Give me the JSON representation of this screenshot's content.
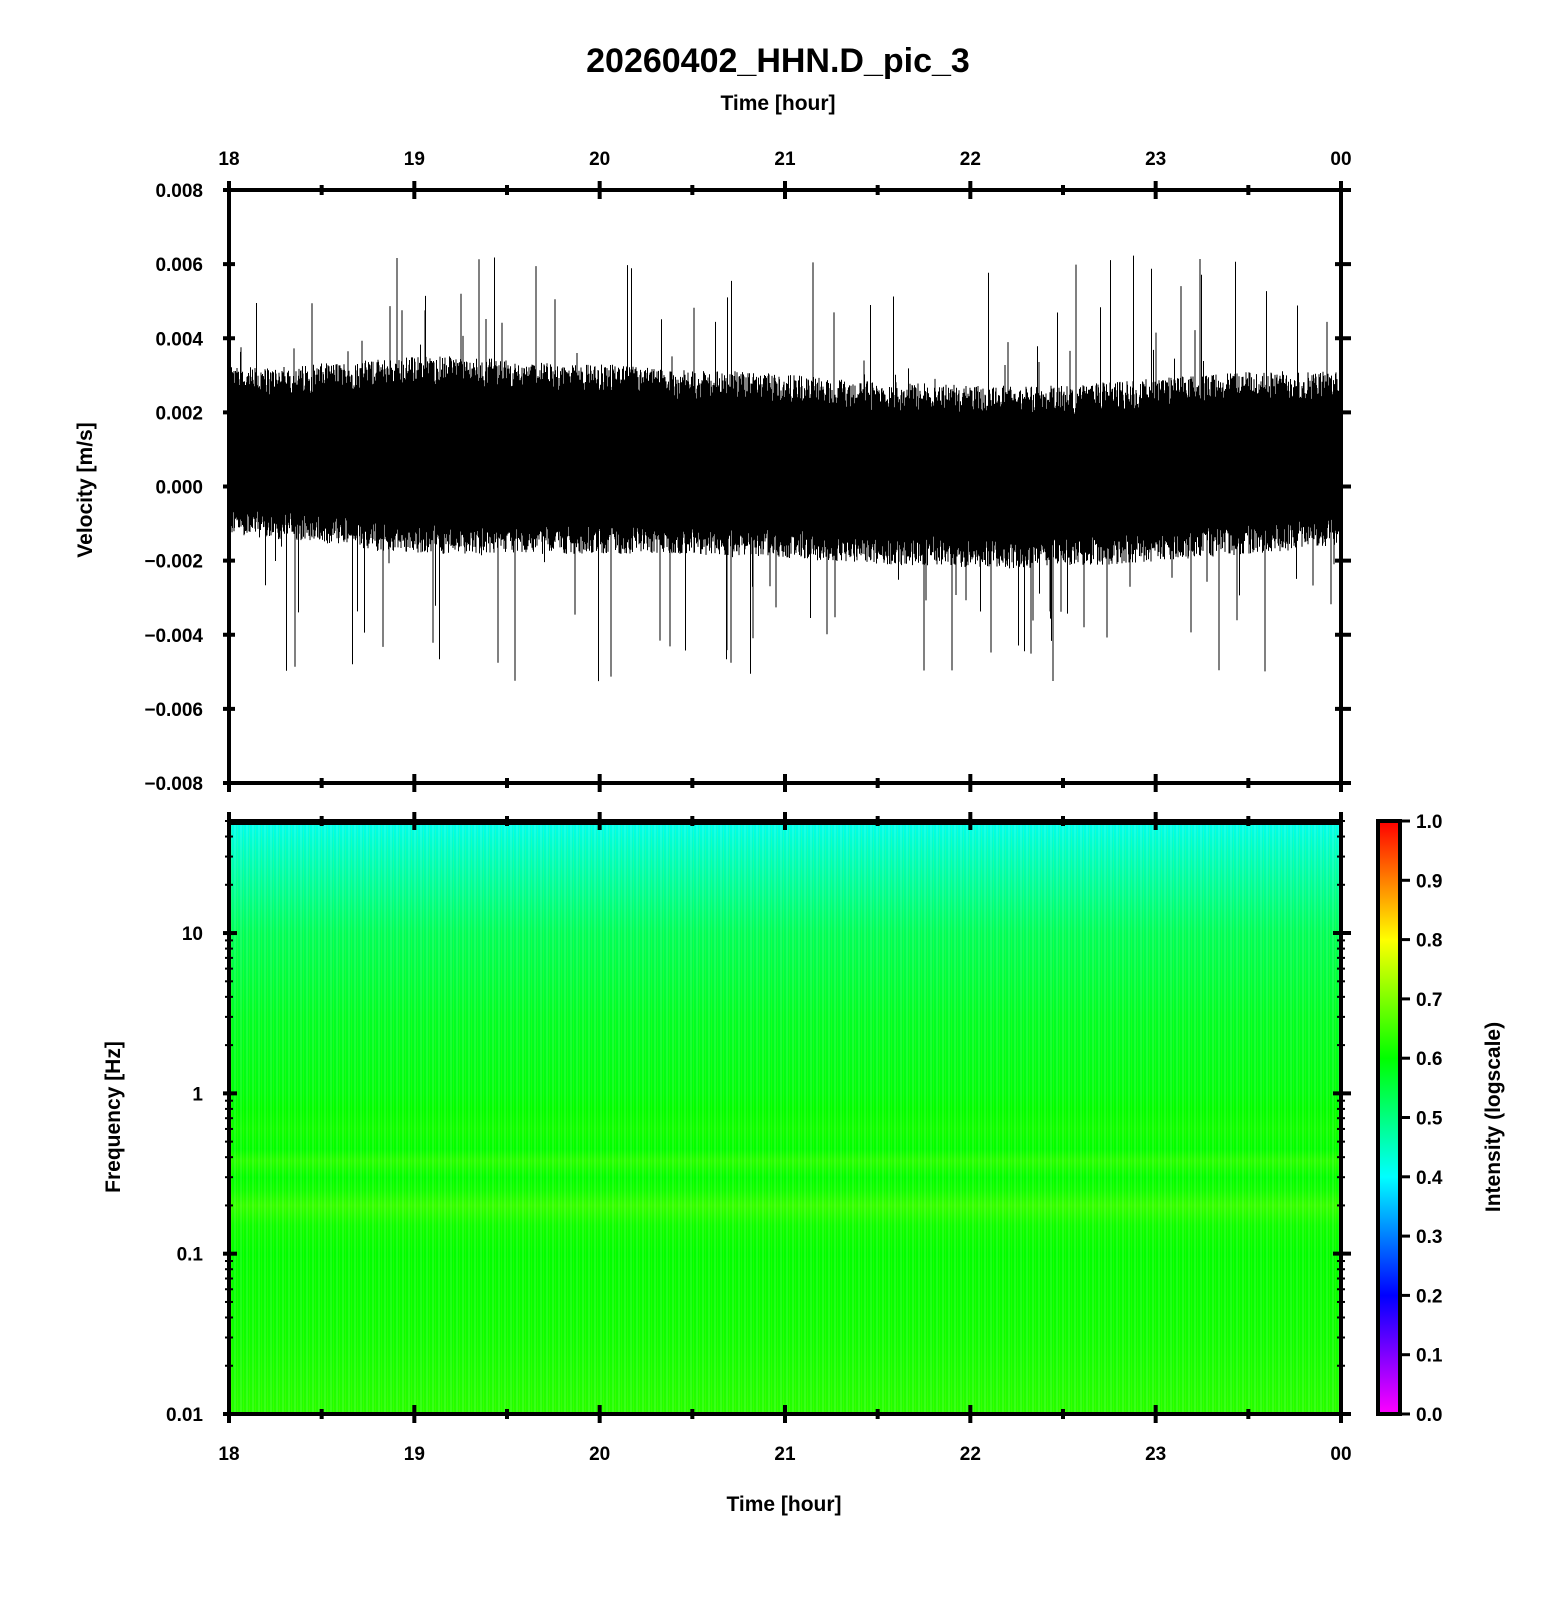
{
  "title": "20260402_HHN.D_pic_3",
  "chart_data": [
    {
      "type": "line",
      "panel": "waveform",
      "xlabel": "Time [hour]",
      "ylabel": "Velocity [m/s]",
      "x_ticks": [
        "18",
        "19",
        "20",
        "21",
        "22",
        "23",
        "00"
      ],
      "x_range_hours": [
        18,
        24
      ],
      "y_ticks": [
        "0.008",
        "0.006",
        "0.004",
        "0.002",
        "0.000",
        "−0.002",
        "−0.004",
        "−0.006",
        "−0.008"
      ],
      "ylim": [
        -0.008,
        0.008
      ],
      "line_color": "#000000",
      "envelope": {
        "hours": [
          18.0,
          18.25,
          18.5,
          18.75,
          19.0,
          19.25,
          19.5,
          19.75,
          20.0,
          20.25,
          20.5,
          20.75,
          21.0,
          21.25,
          21.5,
          21.75,
          22.0,
          22.25,
          22.5,
          22.75,
          23.0,
          23.25,
          23.5,
          23.75,
          24.0
        ],
        "dense_max": [
          0.0027,
          0.0027,
          0.0028,
          0.0029,
          0.003,
          0.003,
          0.0029,
          0.0028,
          0.0028,
          0.0027,
          0.0026,
          0.0026,
          0.0025,
          0.0024,
          0.0023,
          0.0023,
          0.0022,
          0.0022,
          0.0022,
          0.0023,
          0.0024,
          0.0025,
          0.0026,
          0.0026,
          0.0026
        ],
        "dense_min": [
          -0.0008,
          -0.0009,
          -0.001,
          -0.0012,
          -0.0013,
          -0.0013,
          -0.0013,
          -0.0013,
          -0.0013,
          -0.0013,
          -0.0013,
          -0.0014,
          -0.0014,
          -0.0015,
          -0.0016,
          -0.0016,
          -0.0017,
          -0.0017,
          -0.0016,
          -0.0016,
          -0.0015,
          -0.0014,
          -0.0013,
          -0.0012,
          -0.0011
        ],
        "peak_max": 0.0064,
        "peak_min": -0.0053
      }
    },
    {
      "type": "heatmap",
      "panel": "spectrogram",
      "xlabel": "Time [hour]",
      "ylabel": "Frequency [Hz]",
      "x_ticks": [
        "18",
        "19",
        "20",
        "21",
        "22",
        "23",
        "00"
      ],
      "x_range_hours": [
        18,
        24
      ],
      "y_scale": "log",
      "y_ticks": [
        "10",
        "1",
        "0.1",
        "0.01"
      ],
      "ylim": [
        0.01,
        50
      ],
      "intensity_profile": {
        "freq_hz": [
          0.01,
          0.03,
          0.1,
          0.15,
          0.2,
          0.25,
          0.3,
          0.38,
          0.45,
          0.6,
          0.8,
          1,
          3,
          10,
          20,
          35,
          50
        ],
        "intensity": [
          0.63,
          0.61,
          0.6,
          0.61,
          0.64,
          0.61,
          0.6,
          0.63,
          0.6,
          0.61,
          0.6,
          0.59,
          0.57,
          0.53,
          0.48,
          0.44,
          0.41
        ]
      },
      "colorbar": {
        "label": "Intensity (logscale)",
        "ticks": [
          "1.0",
          "0.9",
          "0.8",
          "0.7",
          "0.6",
          "0.5",
          "0.4",
          "0.3",
          "0.2",
          "0.1",
          "0.0"
        ],
        "range": [
          0.0,
          1.0
        ],
        "colormap": [
          "#ff00ff",
          "#0000ff",
          "#00ffff",
          "#00ff00",
          "#ffff00",
          "#ff0000"
        ]
      }
    }
  ]
}
